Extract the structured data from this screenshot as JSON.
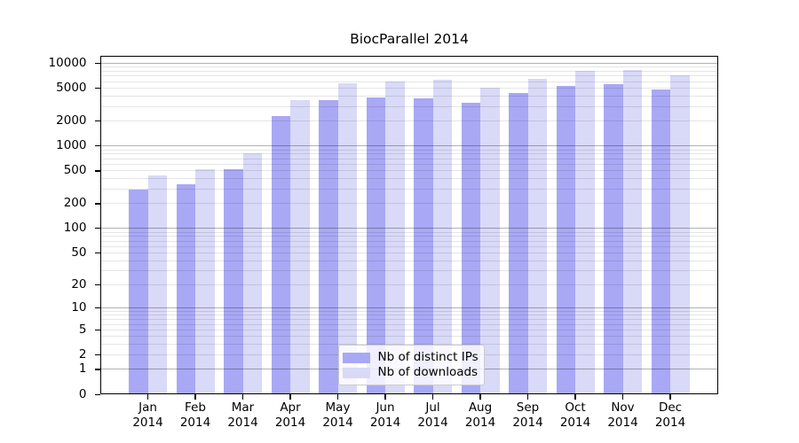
{
  "title": "BiocParallel 2014",
  "chart_data": {
    "type": "bar",
    "title": "BiocParallel 2014",
    "categories": [
      "Jan",
      "Feb",
      "Mar",
      "Apr",
      "May",
      "Jun",
      "Jul",
      "Aug",
      "Sep",
      "Oct",
      "Nov",
      "Dec"
    ],
    "category_year": "2014",
    "series": [
      {
        "name": "Nb of distinct IPs",
        "color": "#a8a8f5",
        "values": [
          290,
          340,
          520,
          2250,
          3550,
          3850,
          3700,
          3300,
          4350,
          5300,
          5500,
          4750
        ]
      },
      {
        "name": "Nb of downloads",
        "color": "#d9d9f8",
        "values": [
          430,
          520,
          800,
          3500,
          5600,
          5900,
          6300,
          5000,
          6400,
          7900,
          8200,
          7100
        ]
      }
    ],
    "yticks": [
      0,
      1,
      2,
      5,
      10,
      20,
      50,
      100,
      200,
      500,
      1000,
      2000,
      5000,
      10000
    ],
    "ylim": [
      0,
      13000
    ],
    "scale": "log1p",
    "grid": true,
    "grid_major_at": [
      1,
      10,
      100,
      1000,
      10000
    ],
    "legend_position": "lower center inside",
    "xlabel": "",
    "ylabel": ""
  }
}
